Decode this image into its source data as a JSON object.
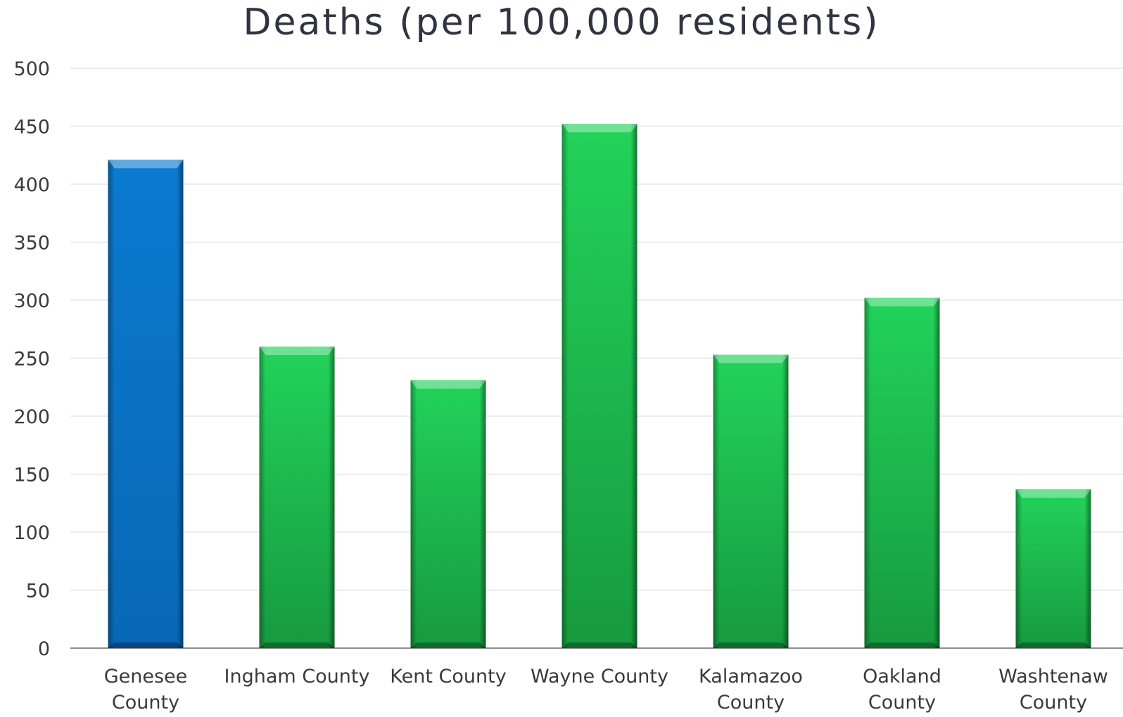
{
  "chart_data": {
    "type": "bar",
    "title": "Deaths (per 100,000 residents)",
    "categories": [
      [
        "Genesee",
        "County"
      ],
      [
        "Ingham County"
      ],
      [
        "Kent County"
      ],
      [
        "Wayne County"
      ],
      [
        "Kalamazoo",
        "County"
      ],
      [
        "Oakland",
        "County"
      ],
      [
        "Washtenaw",
        "County"
      ]
    ],
    "values": [
      421,
      260,
      231,
      452,
      253,
      302,
      137
    ],
    "highlight_index": 0,
    "ylim": [
      0,
      500
    ],
    "yticks": [
      0,
      50,
      100,
      150,
      200,
      250,
      300,
      350,
      400,
      450,
      500
    ],
    "grid": true,
    "colors": {
      "highlight": "#0a76c8",
      "highlight_dark": "#0a4f8f",
      "bar": "#1fbf4f",
      "bar_dark": "#138a36",
      "grid": "#e6e6e6",
      "axis": "#8c8c8c"
    }
  }
}
